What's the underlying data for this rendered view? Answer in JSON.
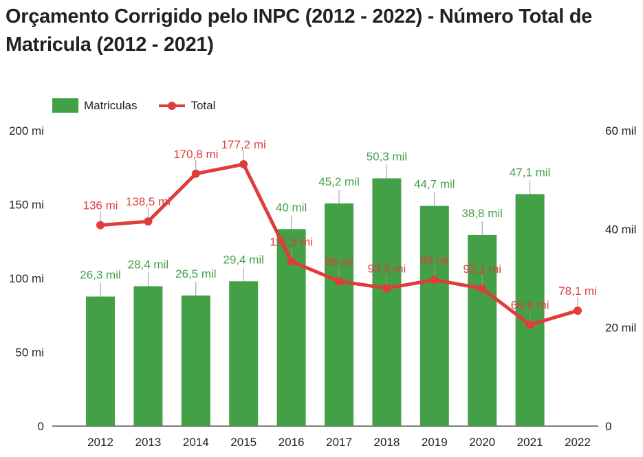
{
  "title": "Orçamento Corrigido pelo INPC (2012 - 2022) - Número Total de Matricula (2012 - 2021)",
  "colors": {
    "bars": "#43a047",
    "line": "#e03c3c",
    "bar_label": "#43a047",
    "line_label": "#e03c3c",
    "axis_text": "#222222"
  },
  "chart_data": {
    "type": "bar",
    "categories": [
      "2012",
      "2013",
      "2014",
      "2015",
      "2016",
      "2017",
      "2018",
      "2019",
      "2020",
      "2021",
      "2022"
    ],
    "series": [
      {
        "name": "Matriculas",
        "type": "bar",
        "axis": "right",
        "values": [
          26.3,
          28.4,
          26.5,
          29.4,
          40,
          45.2,
          50.3,
          44.7,
          38.8,
          47.1,
          null
        ],
        "labels": [
          "26,3 mil",
          "28,4 mil",
          "26,5 mil",
          "29,4 mil",
          "40 mil",
          "45,2 mil",
          "50,3 mil",
          "44,7 mil",
          "38,8 mil",
          "47,1 mil",
          ""
        ]
      },
      {
        "name": "Total",
        "type": "line",
        "axis": "left",
        "values": [
          136,
          138.5,
          170.8,
          177.2,
          111.5,
          98,
          93.3,
          99,
          93.1,
          68.6,
          78.1
        ],
        "labels": [
          "136 mi",
          "138,5 mi",
          "170,8 mi",
          "177,2 mi",
          "111,5 mi",
          "98 mi",
          "93,3 mi",
          "99 mi",
          "93,1 mi",
          "68,6 mi",
          "78,1 mi"
        ]
      }
    ],
    "y_left": {
      "ylim": [
        0,
        200
      ],
      "ticks": [
        0,
        50,
        100,
        150,
        200
      ],
      "tick_labels": [
        "0",
        "50 mi",
        "100 mi",
        "150 mi",
        "200 mi"
      ]
    },
    "y_right": {
      "ylim": [
        0,
        60
      ],
      "ticks": [
        0,
        20,
        40,
        60
      ],
      "tick_labels": [
        "0",
        "20 mil",
        "40 mil",
        "60 mil"
      ]
    },
    "grid": false,
    "legend": "top-left"
  }
}
